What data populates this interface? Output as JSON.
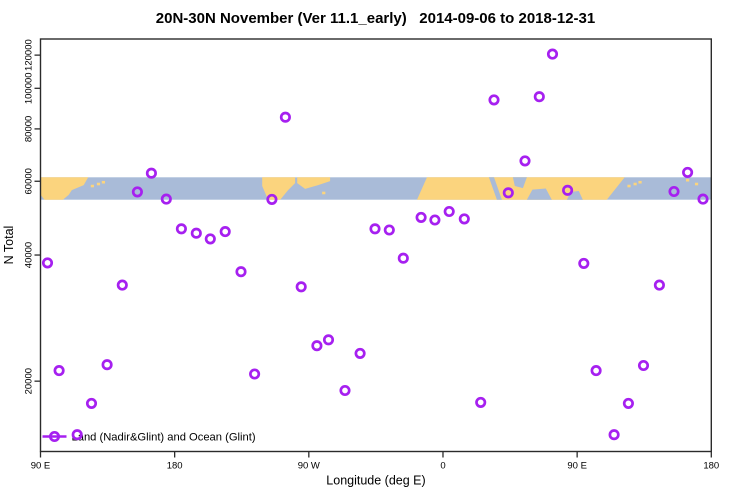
{
  "figure": {
    "title": "20N-30N November (Ver 11.1_early)   2014-09-06 to 2018-12-31",
    "xlabel": "Longitude (deg E)",
    "ylabel": "N Total",
    "legend": {
      "label": "Land (Nadir&Glint) and Ocean (Glint)",
      "marker": "open-circle-on-line"
    },
    "colors": {
      "points": "#a620f0",
      "ocean": "#a9bbd8",
      "land": "#fbd47e",
      "axis": "#2b2b2b",
      "background": "#ffffff"
    }
  },
  "chart_data": {
    "type": "scatter",
    "title": "20N-30N November (Ver 11.1_early)   2014-09-06 to 2018-12-31",
    "xlabel": "Longitude (deg E)",
    "ylabel": "N Total",
    "x_axis": {
      "range": [
        90,
        540
      ],
      "ticks": [
        90,
        180,
        270,
        360,
        450,
        540
      ],
      "tick_labels": [
        "90 E",
        "180",
        "90 W",
        "0",
        "90 E",
        "180"
      ],
      "note": "longitude axis wraps around the globe: 90E -> 180 -> 90W -> 0 -> 90E -> 180"
    },
    "y_axis": {
      "scale": "log",
      "range": [
        13600,
        131000
      ],
      "ticks": [
        20000,
        40000,
        60000,
        80000,
        100000,
        120000
      ],
      "tick_labels": [
        "20000",
        "40000",
        "60000",
        "80000",
        "100000",
        "120000"
      ]
    },
    "grid": false,
    "legend_position": "bottom-left-inside",
    "series": [
      {
        "name": "Land (Nadir&Glint) and Ocean (Glint)",
        "marker": "open-circle",
        "color": "#a620f0",
        "points": [
          [
            94.7,
            38300
          ],
          [
            102.5,
            21200
          ],
          [
            114.6,
            14900
          ],
          [
            124.2,
            17700
          ],
          [
            134.7,
            21900
          ],
          [
            144.9,
            33900
          ],
          [
            155.0,
            56600
          ],
          [
            164.4,
            62700
          ],
          [
            174.4,
            54400
          ],
          [
            184.5,
            46200
          ],
          [
            194.5,
            45100
          ],
          [
            203.9,
            43700
          ],
          [
            213.9,
            45500
          ],
          [
            224.5,
            36500
          ],
          [
            233.6,
            20800
          ],
          [
            245.2,
            54300
          ],
          [
            254.3,
            85300
          ],
          [
            264.9,
            33600
          ],
          [
            275.4,
            24300
          ],
          [
            283.2,
            25100
          ],
          [
            294.3,
            19000
          ],
          [
            304.4,
            23300
          ],
          [
            314.4,
            46200
          ],
          [
            324.0,
            45900
          ],
          [
            333.4,
            39300
          ],
          [
            345.3,
            49200
          ],
          [
            354.6,
            48500
          ],
          [
            364.2,
            50800
          ],
          [
            374.3,
            48800
          ],
          [
            385.3,
            17800
          ],
          [
            394.2,
            93800
          ],
          [
            403.8,
            56300
          ],
          [
            415.0,
            67100
          ],
          [
            424.6,
            95500
          ],
          [
            433.5,
            120700
          ],
          [
            443.6,
            57100
          ],
          [
            454.5,
            38200
          ],
          [
            462.7,
            21200
          ],
          [
            474.8,
            14900
          ],
          [
            484.4,
            17700
          ],
          [
            494.5,
            21800
          ],
          [
            505.2,
            33900
          ],
          [
            515.0,
            56700
          ],
          [
            524.1,
            63000
          ],
          [
            534.4,
            54400
          ]
        ]
      }
    ],
    "map_band": {
      "description": "world-map strip of the 20N-30N latitude band drawn across the plot",
      "value_range": [
        54200,
        61500
      ],
      "ocean_color": "#a9bbd8",
      "land_color": "#fbd47e",
      "land_polygons": [
        [
          [
            90,
            0
          ],
          [
            122,
            0
          ],
          [
            119,
            0.35
          ],
          [
            111,
            0.57
          ],
          [
            109,
            0.78
          ],
          [
            105,
            1
          ],
          [
            92.7,
            1
          ],
          [
            90,
            0.78
          ]
        ],
        [
          [
            238.7,
            0
          ],
          [
            260.8,
            0
          ],
          [
            260.8,
            0.26
          ],
          [
            256.1,
            0.57
          ],
          [
            250.8,
            1
          ],
          [
            242.7,
            1
          ],
          [
            238.7,
            0.39
          ]
        ],
        [
          [
            262.2,
            0
          ],
          [
            284.3,
            0
          ],
          [
            284.3,
            0.17
          ],
          [
            276.2,
            0.35
          ],
          [
            267.5,
            0.52
          ],
          [
            262.2,
            0.26
          ]
        ],
        [
          [
            349.3,
            0
          ],
          [
            481.9,
            0
          ],
          [
            469.9,
            1
          ],
          [
            342.6,
            1
          ]
        ]
      ],
      "ocean_notches": [
        [
          [
            390.8,
            0
          ],
          [
            394.2,
            0
          ],
          [
            399.5,
            1
          ],
          [
            396.2,
            1
          ]
        ],
        [
          [
            406.9,
            0
          ],
          [
            416.3,
            0
          ],
          [
            413.6,
            0.48
          ],
          [
            408.2,
            0.39
          ]
        ],
        [
          [
            416.3,
            1
          ],
          [
            433,
            1
          ],
          [
            429,
            0.5
          ],
          [
            420,
            0.55
          ]
        ],
        [
          [
            443.1,
            1
          ],
          [
            453.8,
            1
          ],
          [
            451.1,
            0.61
          ],
          [
            445.7,
            0.65
          ]
        ]
      ],
      "islands": [
        [
          124.8,
          0.39
        ],
        [
          128.9,
          0.3
        ],
        [
          132.2,
          0.22
        ],
        [
          280,
          0.7
        ],
        [
          484.8,
          0.39
        ],
        [
          488.9,
          0.3
        ],
        [
          492.2,
          0.22
        ],
        [
          524.1,
          0.13
        ],
        [
          530.1,
          0.3
        ]
      ]
    }
  }
}
